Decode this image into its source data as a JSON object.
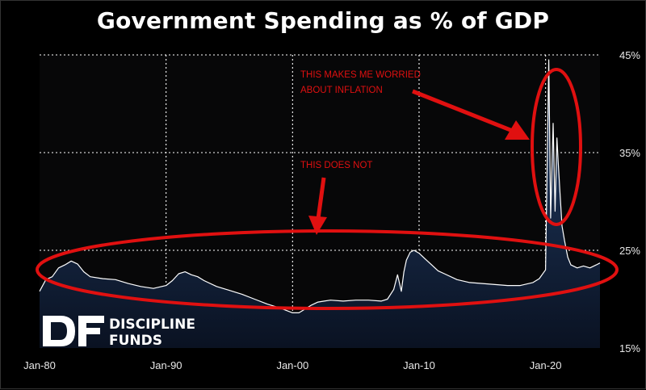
{
  "chart_data": {
    "type": "area",
    "title": "Government Spending as % of GDP",
    "x_tick_labels": [
      "Jan-80",
      "Jan-90",
      "Jan-00",
      "Jan-10",
      "Jan-20"
    ],
    "x_tick_years": [
      1980,
      1990,
      2000,
      2010,
      2020
    ],
    "y_tick_labels": [
      "45%",
      "35%",
      "25%",
      "15%"
    ],
    "y_tick_values": [
      45,
      35,
      25,
      15
    ],
    "xlim": [
      1980,
      2024.3
    ],
    "ylim": [
      15,
      45
    ],
    "grid": "dotted, at tick values",
    "series": [
      {
        "values_x": [
          1980,
          1980.5,
          1981,
          1981.5,
          1982,
          1982.5,
          1983,
          1983.5,
          1984,
          1985,
          1986,
          1987,
          1988,
          1989,
          1990,
          1990.5,
          1991,
          1991.5,
          1992,
          1992.5,
          1993,
          1994,
          1995,
          1996,
          1997,
          1998,
          1999,
          2000,
          2000.5,
          2001,
          2001.5,
          2002,
          2002.5,
          2003,
          2004,
          2005,
          2006,
          2007,
          2007.5,
          2008,
          2008.3,
          2008.6,
          2008.8,
          2009,
          2009.3,
          2009.6,
          2010,
          2010.5,
          2011,
          2011.5,
          2012,
          2013,
          2014,
          2015,
          2016,
          2017,
          2018,
          2019,
          2019.5,
          2020,
          2020.25,
          2020.4,
          2020.6,
          2020.75,
          2020.9,
          2021,
          2021.15,
          2021.3,
          2021.5,
          2021.75,
          2022,
          2022.5,
          2023,
          2023.5,
          2024,
          2024.3
        ],
        "values_y": [
          20.8,
          22.0,
          22.3,
          23.2,
          23.5,
          23.9,
          23.6,
          22.8,
          22.3,
          22.1,
          22.0,
          21.6,
          21.3,
          21.1,
          21.4,
          21.9,
          22.6,
          22.8,
          22.5,
          22.3,
          21.9,
          21.3,
          20.9,
          20.5,
          20.0,
          19.5,
          19.1,
          18.6,
          18.6,
          19.0,
          19.4,
          19.7,
          19.8,
          19.9,
          19.8,
          19.9,
          19.9,
          19.8,
          20.0,
          21.0,
          22.5,
          20.8,
          22.8,
          24.0,
          24.8,
          25.0,
          24.7,
          24.1,
          23.5,
          22.9,
          22.6,
          22.0,
          21.7,
          21.6,
          21.5,
          21.4,
          21.4,
          21.7,
          22.1,
          23.0,
          44.5,
          28.3,
          38.0,
          29.0,
          36.5,
          34.0,
          30.6,
          27.5,
          26.0,
          24.3,
          23.5,
          23.2,
          23.4,
          23.2,
          23.5,
          23.7
        ]
      }
    ],
    "annotations": [
      {
        "lines": [
          "THIS MAKES ME WORRIED",
          "ABOUT INFLATION"
        ]
      },
      {
        "lines": [
          "THIS DOES NOT"
        ]
      }
    ]
  },
  "logo": {
    "mark": "DF",
    "line1": "DISCIPLINE",
    "line2": "FUNDS"
  },
  "colors": {
    "background": "#000000",
    "plot_background": "#070708",
    "line": "#ffffff",
    "area_top": "#24416c",
    "area_bottom": "#0a1222",
    "annotation": "#e01010",
    "grid": "#ffffff"
  }
}
